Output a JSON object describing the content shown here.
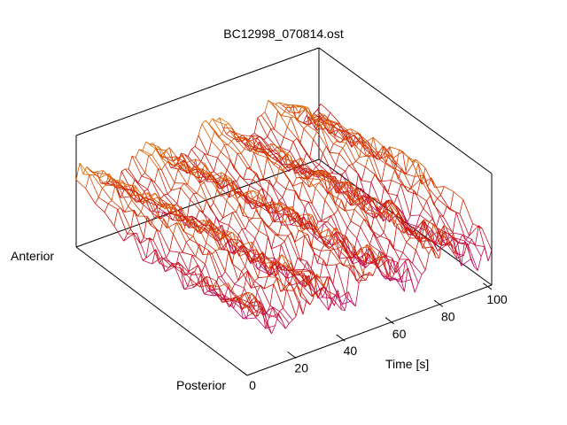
{
  "chart_data": {
    "type": "surface",
    "title": "BC12998_070814.ost",
    "xlabel": "Time [s]",
    "xlim": [
      0,
      100
    ],
    "xticks": [
      "0",
      "20",
      "40",
      "60",
      "80",
      "100"
    ],
    "y_end_labels": {
      "start": "Posterior",
      "end": "Anterior"
    },
    "grid": false,
    "colormap": [
      "#aa00ff",
      "#cc1100",
      "#ffee00"
    ],
    "surface_description_values": {
      "wave_peak_times": [
        5,
        30,
        55,
        80
      ],
      "amplitude_range": [
        0,
        1
      ]
    }
  }
}
